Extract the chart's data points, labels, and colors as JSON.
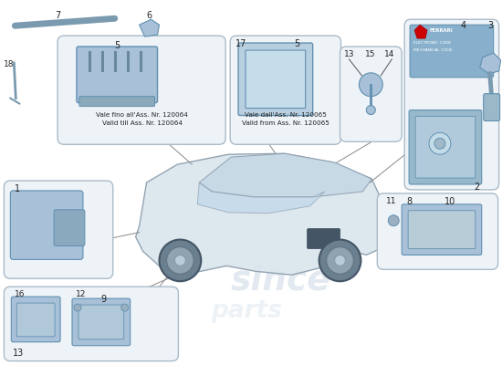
{
  "bg_color": "#ffffff",
  "part_color": "#a8c0d8",
  "part_color2": "#b8cfe0",
  "outline_color": "#6090b0",
  "box_fill": "#eef3f8",
  "box_edge": "#aabbc8",
  "car_body_color": "#d8e4ec",
  "car_edge_color": "#8899aa",
  "line_color": "#888888",
  "note1_it": "Vale fino all'Ass. Nr. 120064",
  "note1_en": "Valid till Ass. Nr. 120064",
  "note2_it": "Vale dall'Ass. Nr. 120065",
  "note2_en": "Valid from Ass. Nr. 120065"
}
